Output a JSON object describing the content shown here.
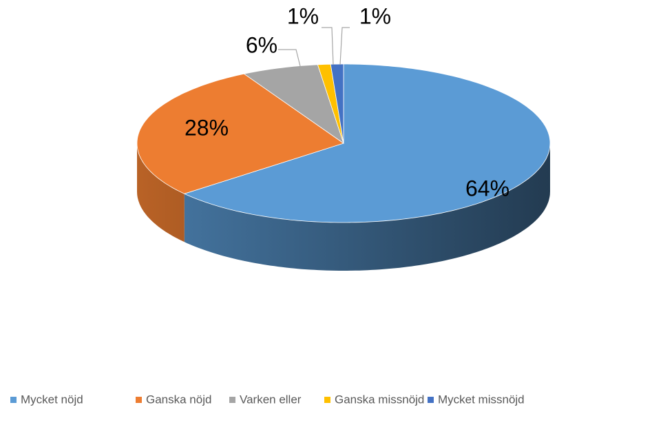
{
  "chart_data": {
    "type": "pie",
    "categories": [
      "Mycket nöjd",
      "Ganska nöjd",
      "Varken eller",
      "Ganska missnöjd",
      "Mycket missnöjd"
    ],
    "values": [
      64,
      28,
      6,
      1,
      1
    ],
    "value_labels": [
      "64%",
      "28%",
      "6%",
      "1%",
      "1%"
    ],
    "colors": [
      "#5b9bd5",
      "#ed7d31",
      "#a5a5a5",
      "#ffc000",
      "#4472c4"
    ],
    "legend": "bottom"
  }
}
